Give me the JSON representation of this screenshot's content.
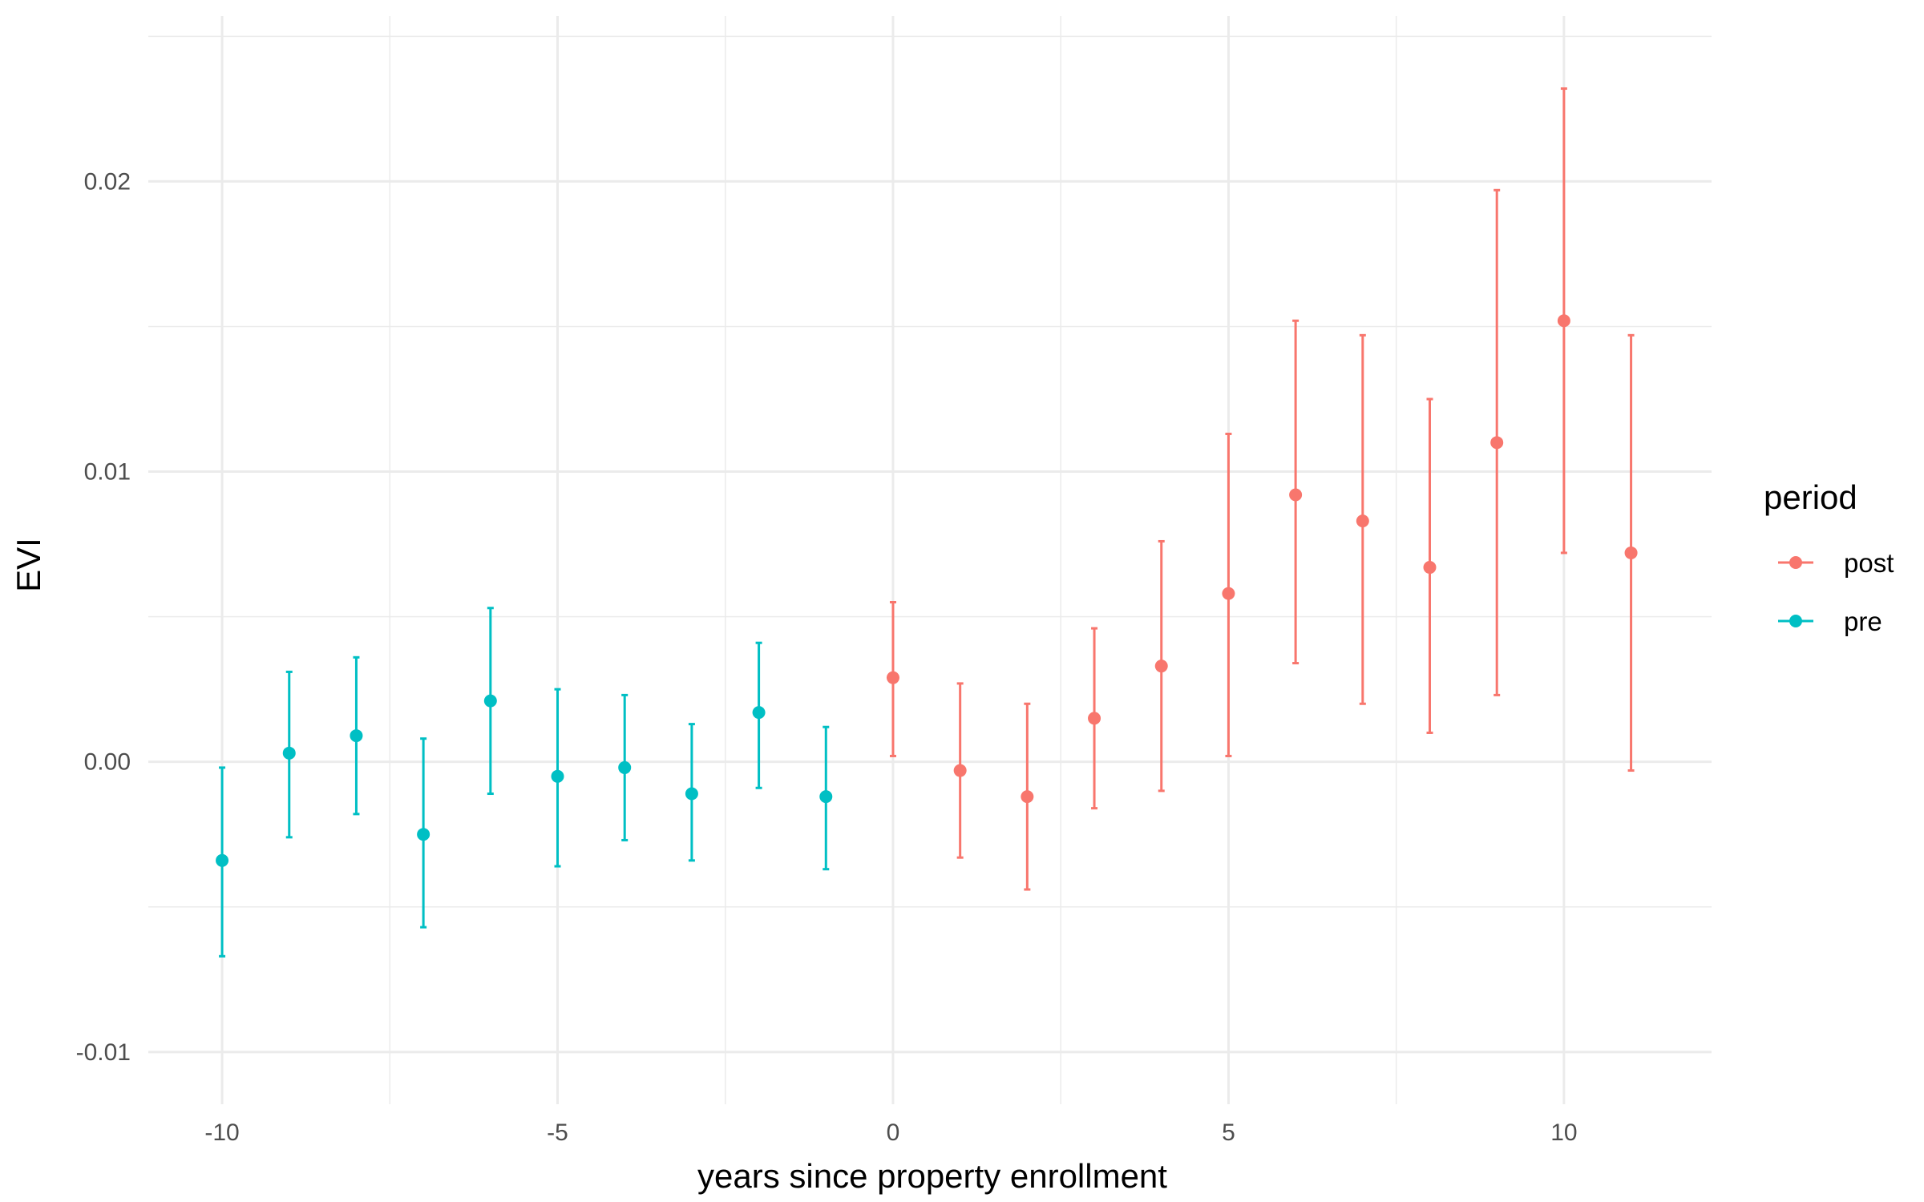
{
  "chart_data": {
    "type": "scatter",
    "subtype": "point-errorbar",
    "title": "",
    "xlabel": "years since property enrollment",
    "ylabel": "EVI",
    "xlim": [
      -11.1,
      12.2
    ],
    "ylim": [
      -0.0118,
      0.0257
    ],
    "x_ticks": [
      -10,
      -5,
      0,
      5,
      10
    ],
    "x_tick_labels": [
      "-10",
      "-5",
      "0",
      "5",
      "10"
    ],
    "y_ticks": [
      -0.01,
      0.0,
      0.01,
      0.02
    ],
    "y_tick_labels": [
      "-0.01",
      "0.00",
      "0.01",
      "0.02"
    ],
    "grid": true,
    "legend": {
      "title": "period",
      "position": "right"
    },
    "series": [
      {
        "name": "post",
        "color": "#F8766D",
        "points": [
          {
            "x": 0,
            "y": 0.0029,
            "ymin": 0.0002,
            "ymax": 0.0055
          },
          {
            "x": 1,
            "y": -0.0003,
            "ymin": -0.0033,
            "ymax": 0.0027
          },
          {
            "x": 2,
            "y": -0.0012,
            "ymin": -0.0044,
            "ymax": 0.002
          },
          {
            "x": 3,
            "y": 0.0015,
            "ymin": -0.0016,
            "ymax": 0.0046
          },
          {
            "x": 4,
            "y": 0.0033,
            "ymin": -0.001,
            "ymax": 0.0076
          },
          {
            "x": 5,
            "y": 0.0058,
            "ymin": 0.0002,
            "ymax": 0.0113
          },
          {
            "x": 6,
            "y": 0.0092,
            "ymin": 0.0034,
            "ymax": 0.0152
          },
          {
            "x": 7,
            "y": 0.0083,
            "ymin": 0.002,
            "ymax": 0.0147
          },
          {
            "x": 8,
            "y": 0.0067,
            "ymin": 0.001,
            "ymax": 0.0125
          },
          {
            "x": 9,
            "y": 0.011,
            "ymin": 0.0023,
            "ymax": 0.0197
          },
          {
            "x": 10,
            "y": 0.0152,
            "ymin": 0.0072,
            "ymax": 0.0232
          },
          {
            "x": 11,
            "y": 0.0072,
            "ymin": -0.0003,
            "ymax": 0.0147
          }
        ]
      },
      {
        "name": "pre",
        "color": "#00BFC4",
        "points": [
          {
            "x": -10,
            "y": -0.0034,
            "ymin": -0.0067,
            "ymax": -0.0002
          },
          {
            "x": -9,
            "y": 0.0003,
            "ymin": -0.0026,
            "ymax": 0.0031
          },
          {
            "x": -8,
            "y": 0.0009,
            "ymin": -0.0018,
            "ymax": 0.0036
          },
          {
            "x": -7,
            "y": -0.0025,
            "ymin": -0.0057,
            "ymax": 0.0008
          },
          {
            "x": -6,
            "y": 0.0021,
            "ymin": -0.0011,
            "ymax": 0.0053
          },
          {
            "x": -5,
            "y": -0.0005,
            "ymin": -0.0036,
            "ymax": 0.0025
          },
          {
            "x": -4,
            "y": -0.0002,
            "ymin": -0.0027,
            "ymax": 0.0023
          },
          {
            "x": -3,
            "y": -0.0011,
            "ymin": -0.0034,
            "ymax": 0.0013
          },
          {
            "x": -2,
            "y": 0.0017,
            "ymin": -0.0009,
            "ymax": 0.0041
          },
          {
            "x": -1,
            "y": -0.0012,
            "ymin": -0.0037,
            "ymax": 0.0012
          }
        ]
      }
    ]
  }
}
